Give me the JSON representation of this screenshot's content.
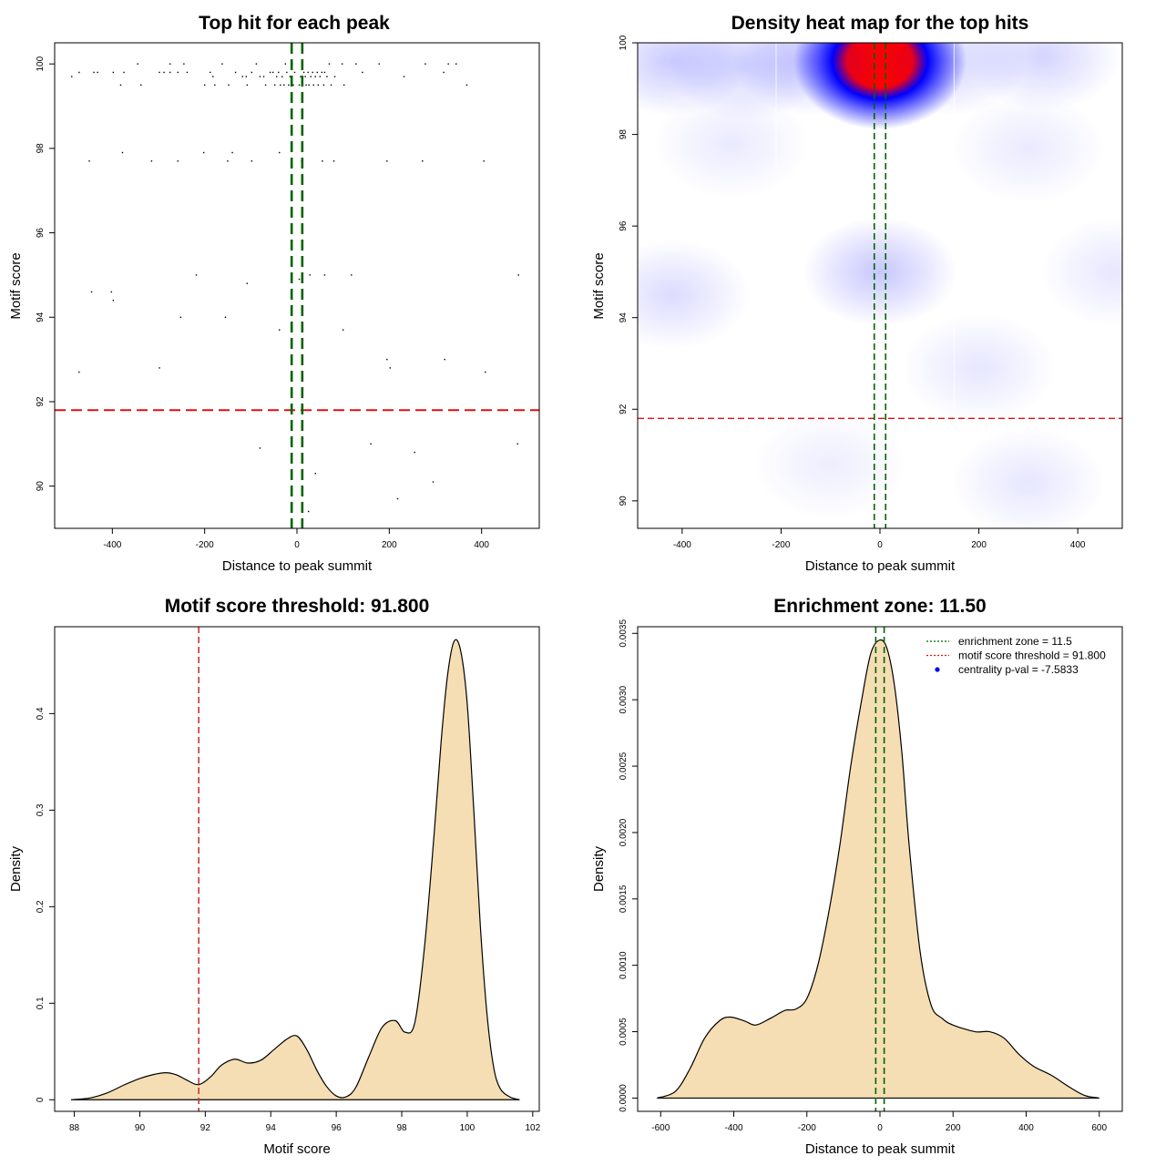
{
  "chart_data": [
    {
      "type": "scatter",
      "title": "Top hit for each peak",
      "xlabel": "Distance to peak summit",
      "ylabel": "Motif score",
      "xlim": [
        -525,
        525
      ],
      "ylim": [
        89,
        100.5
      ],
      "xticks": [
        -400,
        -200,
        0,
        200,
        400
      ],
      "yticks": [
        90,
        92,
        94,
        96,
        98,
        100
      ],
      "hline": {
        "y": 91.8,
        "color": "#dd1111"
      },
      "vlines": {
        "x": [
          -11.5,
          11.5
        ],
        "color": "#006400"
      },
      "points": [
        [
          -488,
          99.7
        ],
        [
          -472,
          99.8
        ],
        [
          -440,
          99.8
        ],
        [
          -432,
          99.8
        ],
        [
          -398,
          99.8
        ],
        [
          -382,
          99.5
        ],
        [
          -375,
          99.8
        ],
        [
          -345,
          100
        ],
        [
          -338,
          99.5
        ],
        [
          -298,
          99.8
        ],
        [
          -288,
          99.8
        ],
        [
          -275,
          100
        ],
        [
          -275,
          99.8
        ],
        [
          -258,
          99.8
        ],
        [
          -245,
          100
        ],
        [
          -238,
          99.8
        ],
        [
          -200,
          99.5
        ],
        [
          -188,
          99.8
        ],
        [
          -182,
          99.7
        ],
        [
          -178,
          99.5
        ],
        [
          -162,
          100
        ],
        [
          -148,
          99.5
        ],
        [
          -133,
          99.8
        ],
        [
          -118,
          99.7
        ],
        [
          -110,
          99.7
        ],
        [
          -108,
          99.5
        ],
        [
          -98,
          99.8
        ],
        [
          -88,
          100
        ],
        [
          -80,
          99.7
        ],
        [
          -72,
          99.7
        ],
        [
          -68,
          99.5
        ],
        [
          -58,
          99.8
        ],
        [
          -52,
          99.8
        ],
        [
          -48,
          99.5
        ],
        [
          -44,
          99.7
        ],
        [
          -40,
          99.8
        ],
        [
          -36,
          99.5
        ],
        [
          -32,
          99.7
        ],
        [
          -28,
          99.5
        ],
        [
          -25,
          100
        ],
        [
          -22,
          99.8
        ],
        [
          -18,
          99.5
        ],
        [
          -15,
          99.7
        ],
        [
          -10,
          100
        ],
        [
          -8,
          99.5
        ],
        [
          -5,
          99.8
        ],
        [
          5,
          99.5
        ],
        [
          8,
          99.7
        ],
        [
          12,
          99.5
        ],
        [
          15,
          99.8
        ],
        [
          18,
          99.7
        ],
        [
          20,
          99.5
        ],
        [
          24,
          99.8
        ],
        [
          26,
          99.5
        ],
        [
          30,
          99.7
        ],
        [
          34,
          99.8
        ],
        [
          36,
          99.5
        ],
        [
          40,
          99.7
        ],
        [
          44,
          99.8
        ],
        [
          46,
          99.5
        ],
        [
          50,
          99.7
        ],
        [
          54,
          99.8
        ],
        [
          58,
          99.5
        ],
        [
          60,
          99.8
        ],
        [
          65,
          99.7
        ],
        [
          70,
          100
        ],
        [
          74,
          99.5
        ],
        [
          82,
          99.7
        ],
        [
          98,
          100
        ],
        [
          102,
          99.5
        ],
        [
          128,
          100
        ],
        [
          142,
          99.8
        ],
        [
          178,
          100
        ],
        [
          232,
          99.7
        ],
        [
          278,
          100
        ],
        [
          318,
          99.8
        ],
        [
          328,
          100
        ],
        [
          345,
          100
        ],
        [
          368,
          99.5
        ],
        [
          -450,
          97.7
        ],
        [
          -378,
          97.9
        ],
        [
          -315,
          97.7
        ],
        [
          -258,
          97.7
        ],
        [
          -202,
          97.9
        ],
        [
          -150,
          97.7
        ],
        [
          -140,
          97.9
        ],
        [
          -98,
          97.7
        ],
        [
          -38,
          97.9
        ],
        [
          10,
          97.7
        ],
        [
          55,
          97.7
        ],
        [
          80,
          97.7
        ],
        [
          195,
          97.7
        ],
        [
          272,
          97.7
        ],
        [
          405,
          97.7
        ],
        [
          -218,
          95
        ],
        [
          -108,
          94.8
        ],
        [
          5,
          94.9
        ],
        [
          28,
          95
        ],
        [
          60,
          95
        ],
        [
          118,
          95
        ],
        [
          480,
          95
        ],
        [
          -445,
          94.6
        ],
        [
          -402,
          94.6
        ],
        [
          -398,
          94.4
        ],
        [
          -252,
          94
        ],
        [
          -155,
          94
        ],
        [
          -38,
          93.7
        ],
        [
          100,
          93.7
        ],
        [
          -472,
          92.7
        ],
        [
          -298,
          92.8
        ],
        [
          195,
          93
        ],
        [
          202,
          92.8
        ],
        [
          320,
          93
        ],
        [
          408,
          92.7
        ],
        [
          -80,
          90.9
        ],
        [
          160,
          91
        ],
        [
          255,
          90.8
        ],
        [
          478,
          91
        ],
        [
          40,
          90.3
        ],
        [
          295,
          90.1
        ],
        [
          218,
          89.7
        ],
        [
          25,
          89.4
        ]
      ]
    },
    {
      "type": "heatmap",
      "title": "Density heat map for the top hits",
      "xlabel": "Distance to peak summit",
      "ylabel": "Motif score",
      "xlim": [
        -490,
        490
      ],
      "ylim": [
        89.4,
        100
      ],
      "xticks": [
        -400,
        -200,
        0,
        200,
        400
      ],
      "yticks": [
        90,
        92,
        94,
        96,
        98,
        100
      ],
      "hline": {
        "y": 91.8,
        "color": "#dd1111"
      },
      "vlines": {
        "x": [
          -11.5,
          11.5
        ],
        "color": "#006400"
      },
      "colors": {
        "low": "#ffffff",
        "mid": "#0000ff",
        "high": "#ff0000"
      },
      "blobs": [
        {
          "x": 0,
          "y": 99.6,
          "amp": 1.0
        },
        {
          "x": -420,
          "y": 99.6,
          "amp": 0.15
        },
        {
          "x": -270,
          "y": 99.5,
          "amp": 0.12
        },
        {
          "x": -140,
          "y": 99.6,
          "amp": 0.15
        },
        {
          "x": 140,
          "y": 99.6,
          "amp": 0.12
        },
        {
          "x": 330,
          "y": 99.7,
          "amp": 0.12
        },
        {
          "x": 0,
          "y": 95,
          "amp": 0.16
        },
        {
          "x": -420,
          "y": 94.5,
          "amp": 0.1
        },
        {
          "x": 480,
          "y": 95,
          "amp": 0.07
        },
        {
          "x": 200,
          "y": 92.9,
          "amp": 0.07
        },
        {
          "x": 300,
          "y": 90.4,
          "amp": 0.07
        },
        {
          "x": -100,
          "y": 90.8,
          "amp": 0.05
        },
        {
          "x": -300,
          "y": 97.8,
          "amp": 0.06
        },
        {
          "x": 300,
          "y": 97.7,
          "amp": 0.06
        }
      ]
    },
    {
      "type": "area",
      "title": "Motif score threshold: 91.800",
      "xlabel": "Motif score",
      "ylabel": "Density",
      "xlim": [
        87.4,
        102.2
      ],
      "ylim": [
        -0.012,
        0.49
      ],
      "xticks": [
        88,
        90,
        92,
        94,
        96,
        98,
        100,
        102
      ],
      "yticks": [
        0.0,
        0.1,
        0.2,
        0.3,
        0.4
      ],
      "vline": {
        "x": 91.8,
        "color": "#cc3333"
      },
      "fill": "#f5deb3",
      "x": [
        87.9,
        88.5,
        89.0,
        89.5,
        90.0,
        90.4,
        90.8,
        91.1,
        91.4,
        91.7,
        91.9,
        92.2,
        92.5,
        92.9,
        93.3,
        93.7,
        94.1,
        94.5,
        94.8,
        95.1,
        95.4,
        95.7,
        96.0,
        96.3,
        96.6,
        97.0,
        97.4,
        97.8,
        98.1,
        98.4,
        98.7,
        99.0,
        99.2,
        99.4,
        99.6,
        99.8,
        100.0,
        100.2,
        100.4,
        100.6,
        100.8,
        101.0,
        101.3,
        101.6
      ],
      "y": [
        0.0,
        0.002,
        0.007,
        0.015,
        0.022,
        0.026,
        0.028,
        0.026,
        0.021,
        0.016,
        0.017,
        0.025,
        0.036,
        0.042,
        0.038,
        0.041,
        0.052,
        0.063,
        0.066,
        0.052,
        0.031,
        0.014,
        0.004,
        0.003,
        0.013,
        0.045,
        0.075,
        0.082,
        0.07,
        0.08,
        0.16,
        0.28,
        0.37,
        0.44,
        0.475,
        0.465,
        0.41,
        0.3,
        0.18,
        0.09,
        0.035,
        0.012,
        0.003,
        0.0
      ]
    },
    {
      "type": "area",
      "title": "Enrichment zone: 11.50",
      "xlabel": "Distance to peak summit",
      "ylabel": "Density",
      "xlim": [
        -663,
        663
      ],
      "ylim": [
        -0.0001,
        0.00355
      ],
      "xticks": [
        -600,
        -400,
        -200,
        0,
        200,
        400,
        600
      ],
      "yticks": [
        0.0,
        0.0005,
        0.001,
        0.0015,
        0.002,
        0.0025,
        0.003,
        0.0035
      ],
      "ytick_labels": [
        "0.0000",
        "0.0005",
        "0.0010",
        "0.0015",
        "0.0020",
        "0.0025",
        "0.0030",
        "0.0035"
      ],
      "vlines": {
        "x": [
          -11.5,
          11.5
        ],
        "color": "#006400"
      },
      "fill": "#f5deb3",
      "x": [
        -610,
        -560,
        -520,
        -480,
        -440,
        -410,
        -370,
        -340,
        -300,
        -260,
        -230,
        -200,
        -170,
        -140,
        -110,
        -80,
        -50,
        -25,
        0,
        20,
        40,
        60,
        80,
        110,
        140,
        170,
        200,
        260,
        300,
        340,
        380,
        420,
        470,
        520,
        560,
        600
      ],
      "y": [
        0.0,
        5e-05,
        0.00022,
        0.00045,
        0.00058,
        0.00061,
        0.00058,
        0.00055,
        0.0006,
        0.00066,
        0.00067,
        0.00075,
        0.001,
        0.0014,
        0.0019,
        0.0025,
        0.003,
        0.00335,
        0.00345,
        0.00338,
        0.0031,
        0.0026,
        0.0019,
        0.0011,
        0.0007,
        0.0006,
        0.00055,
        0.0005,
        0.0005,
        0.00045,
        0.00033,
        0.00024,
        0.00017,
        8e-05,
        2e-05,
        0.0
      ],
      "legend": [
        {
          "label": "enrichment zone = 11.5",
          "color": "#006400",
          "kind": "dotted"
        },
        {
          "label": "motif score threshold = 91.800",
          "color": "#dd1111",
          "kind": "dotted"
        },
        {
          "label": "centrality p-val = -7.5833",
          "color": "#0000ff",
          "kind": "point"
        }
      ]
    }
  ]
}
